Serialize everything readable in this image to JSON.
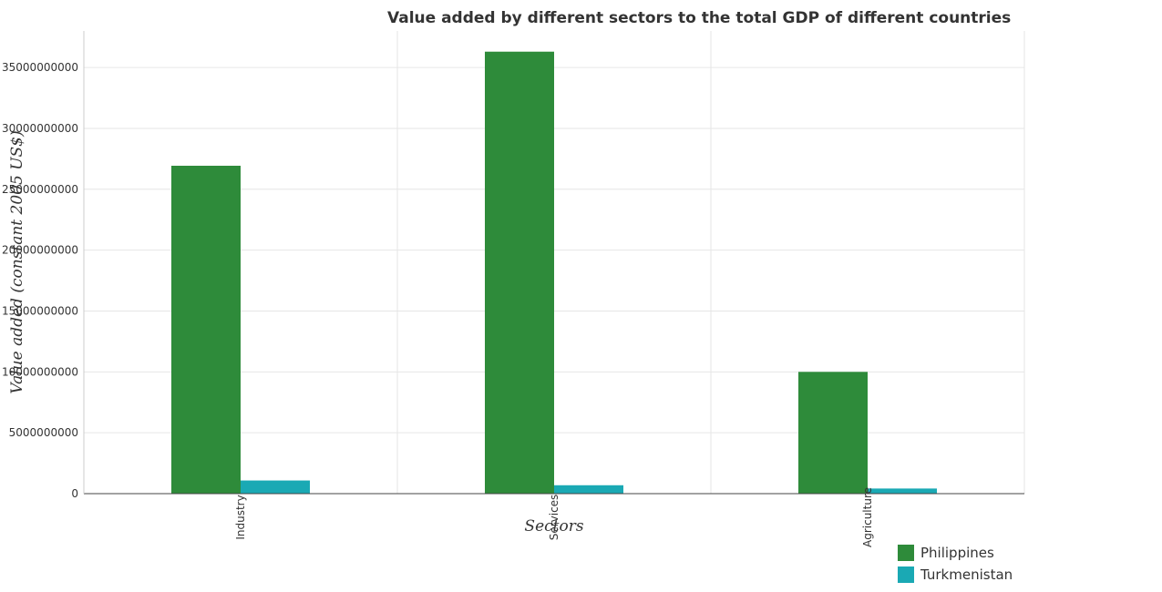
{
  "chart_data": {
    "type": "bar",
    "title": "Value added by different sectors to the total GDP of different countries",
    "xlabel": "Sectors",
    "ylabel": "Value added (constant 2005 US$)",
    "categories": [
      "Industry",
      "Services",
      "Agriculture"
    ],
    "series": [
      {
        "name": "Philippines",
        "color": "#2e8b3a",
        "values": [
          26930000000,
          36300000000,
          10000000000
        ]
      },
      {
        "name": "Turkmenistan",
        "color": "#1aa9b4",
        "values": [
          1080000000,
          690000000,
          420000000
        ]
      }
    ],
    "ylim": [
      0,
      38000000000
    ],
    "yticks": [
      0,
      5000000000,
      10000000000,
      15000000000,
      20000000000,
      25000000000,
      30000000000,
      35000000000
    ],
    "ytick_labels": [
      "0",
      "5000000000",
      "10000000000",
      "15000000000",
      "20000000000",
      "25000000000",
      "30000000000",
      "35000000000"
    ],
    "grid": true,
    "legend_position": "bottom-right"
  }
}
